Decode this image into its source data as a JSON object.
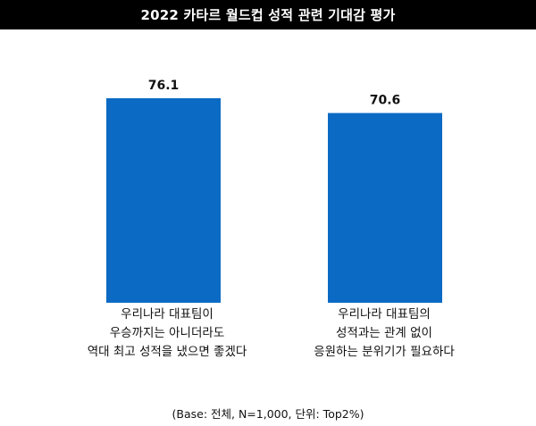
{
  "chart_data": {
    "type": "bar",
    "title": "2022 카타르 월드컵 성적 관련 기대감 평가",
    "categories": [
      "우리나라 대표팀이\n우승까지는 아니더라도\n역대 최고 성적을 냈으면 좋겠다",
      "우리나라 대표팀의\n성적과는 관계 없이\n응원하는 분위기가 필요하다"
    ],
    "values": [
      76.1,
      70.6
    ],
    "data_labels": [
      "76.1",
      "70.6"
    ],
    "ylim": [
      0,
      80
    ],
    "grid": false,
    "bar_color": "#0a6ac4",
    "footnote": "(Base: 전체, N=1,000, 단위: Top2%)"
  }
}
